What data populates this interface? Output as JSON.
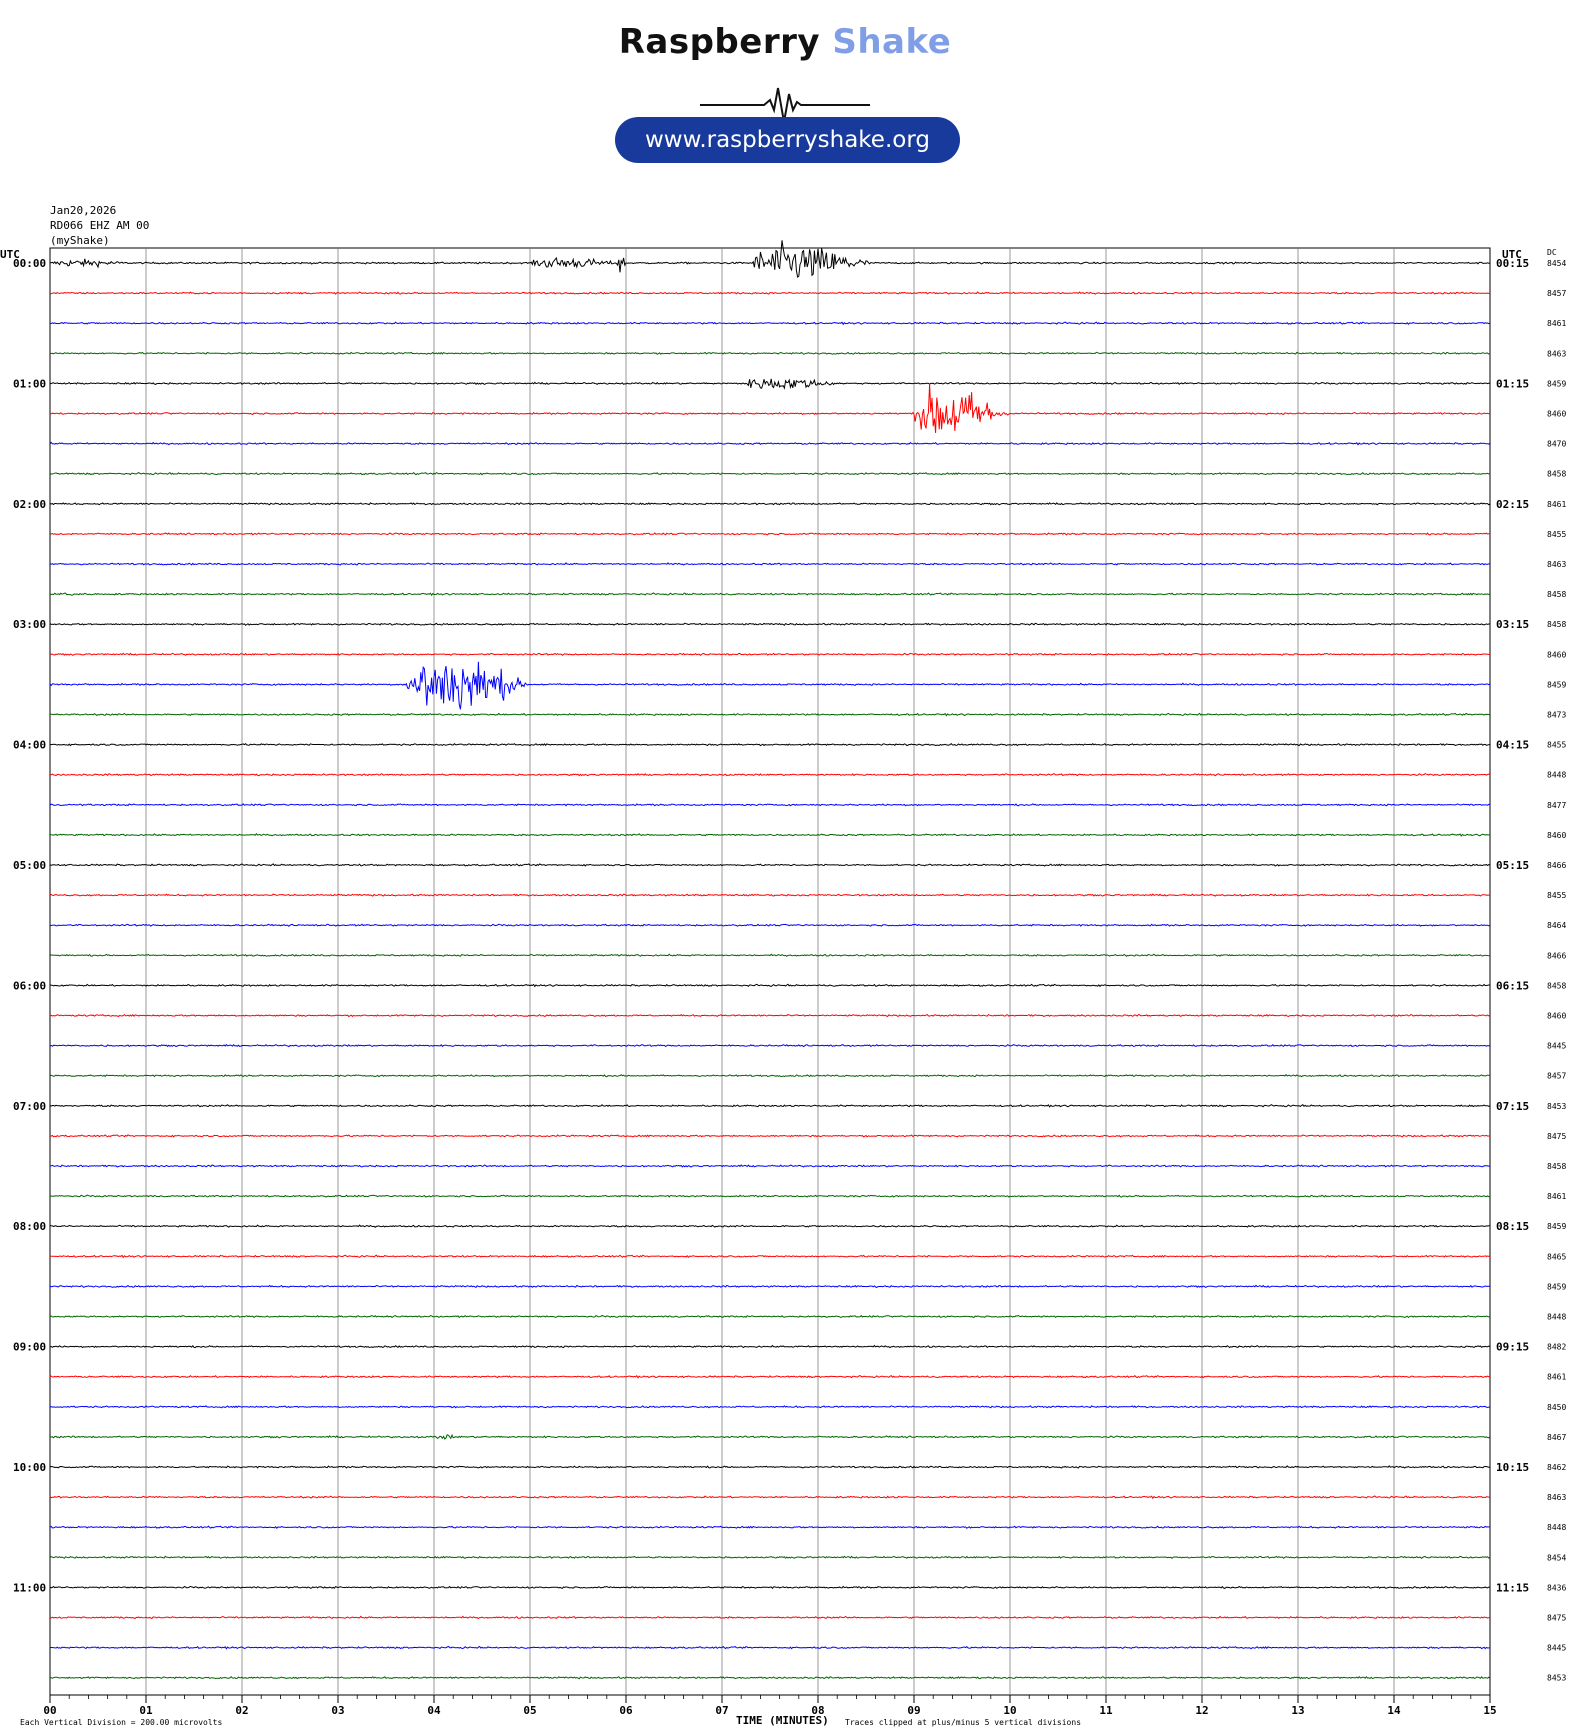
{
  "header": {
    "logo_word1": "Raspberry",
    "logo_word2": "Shake",
    "website": "www.raspberryshake.org",
    "date": "Jan20,2026",
    "station": "RD066 EHZ AM 00",
    "app": "(myShake)"
  },
  "colors": {
    "trace_cycle": [
      "#000000",
      "#ff0000",
      "#0000ff",
      "#006400"
    ],
    "logo_blue": "#7f9ee6",
    "link_bg": "#173a9c",
    "grid": "#808080"
  },
  "footer": {
    "scale_note": "Each Vertical Division =  200.00 microvolts",
    "xlabel": "TIME (MINUTES)",
    "clip_note": "Traces clipped at plus/minus 5 vertical divisions"
  },
  "chart_data": {
    "type": "line",
    "title": "",
    "left_axis_title": "UTC",
    "right_axis_title": "UTC",
    "dc_title": "DC",
    "xlabel": "TIME (MINUTES)",
    "xlim": [
      0,
      15
    ],
    "x_ticks": [
      "00",
      "01",
      "02",
      "03",
      "04",
      "05",
      "06",
      "07",
      "08",
      "09",
      "10",
      "11",
      "12",
      "13",
      "14",
      "15"
    ],
    "left_hour_labels": [
      "00:00",
      "01:00",
      "02:00",
      "03:00",
      "04:00",
      "05:00",
      "06:00",
      "07:00",
      "08:00",
      "09:00",
      "10:00",
      "11:00"
    ],
    "right_hour_labels": [
      "00:15",
      "01:15",
      "02:15",
      "03:15",
      "04:15",
      "05:15",
      "06:15",
      "07:15",
      "08:15",
      "09:15",
      "10:15",
      "11:15"
    ],
    "lines_per_hour": 4,
    "minutes_per_line": 15,
    "dc_offsets": [
      8454,
      8457,
      8461,
      8463,
      8459,
      8460,
      8470,
      8458,
      8461,
      8455,
      8463,
      8458,
      8458,
      8460,
      8459,
      8473,
      8455,
      8448,
      8477,
      8460,
      8466,
      8455,
      8464,
      8466,
      8458,
      8460,
      8445,
      8457,
      8453,
      8475,
      8458,
      8461,
      8459,
      8465,
      8459,
      8448,
      8482,
      8461,
      8450,
      8467,
      8462,
      8463,
      8448,
      8454,
      8436,
      8475,
      8445,
      8453
    ],
    "grid": true,
    "events": [
      {
        "line": 0,
        "start_min": 0.0,
        "end_min": 0.9,
        "amplitude_div": 0.6
      },
      {
        "line": 0,
        "start_min": 5.0,
        "end_min": 6.0,
        "amplitude_div": 0.9
      },
      {
        "line": 0,
        "start_min": 5.9,
        "end_min": 6.0,
        "amplitude_div": 2.0
      },
      {
        "line": 0,
        "start_min": 7.3,
        "end_min": 8.6,
        "amplitude_div": 3.0
      },
      {
        "line": 4,
        "start_min": 7.2,
        "end_min": 8.3,
        "amplitude_div": 1.0
      },
      {
        "line": 5,
        "start_min": 9.0,
        "end_min": 10.0,
        "amplitude_div": 4.5
      },
      {
        "line": 11,
        "start_min": 0.1,
        "end_min": 0.4,
        "amplitude_div": 0.4
      },
      {
        "line": 14,
        "start_min": 3.7,
        "end_min": 5.0,
        "amplitude_div": 5.0
      },
      {
        "line": 39,
        "start_min": 4.0,
        "end_min": 4.3,
        "amplitude_div": 0.4
      }
    ]
  }
}
